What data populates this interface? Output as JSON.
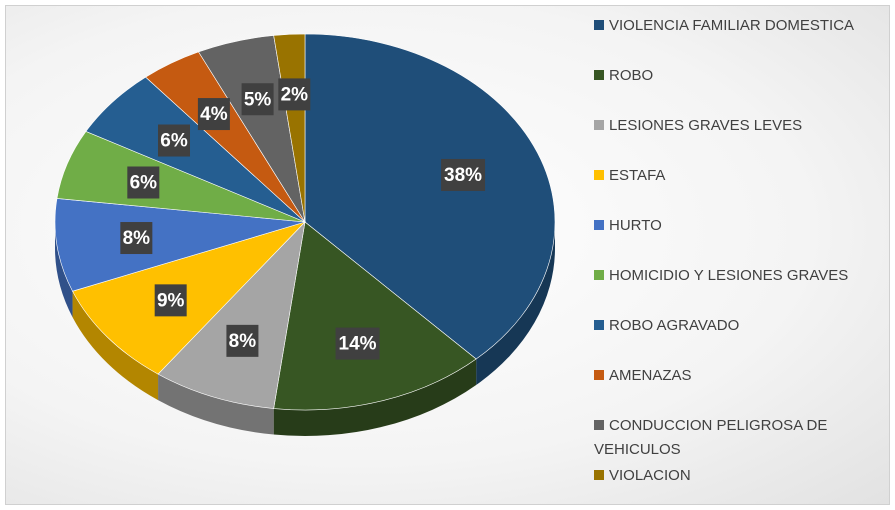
{
  "chart_data": {
    "type": "pie",
    "categories": [
      "VIOLENCIA FAMILIAR DOMESTICA",
      "ROBO",
      "LESIONES GRAVES LEVES",
      "ESTAFA",
      "HURTO",
      "HOMICIDIO Y LESIONES GRAVES",
      "ROBO AGRAVADO",
      "AMENAZAS",
      "CONDUCCION PELIGROSA DE VEHICULOS",
      "VIOLACION"
    ],
    "values": [
      38,
      14,
      8,
      9,
      8,
      6,
      6,
      4,
      5,
      2
    ],
    "value_labels": [
      "38%",
      "14%",
      "8%",
      "9%",
      "8%",
      "6%",
      "6%",
      "4%",
      "5%",
      "2%"
    ],
    "colors": [
      "#1f4e79",
      "#375623",
      "#a5a5a5",
      "#ffc000",
      "#4472c4",
      "#70ad47",
      "#255e91",
      "#c55a11",
      "#636363",
      "#997300"
    ],
    "legend": "right"
  }
}
